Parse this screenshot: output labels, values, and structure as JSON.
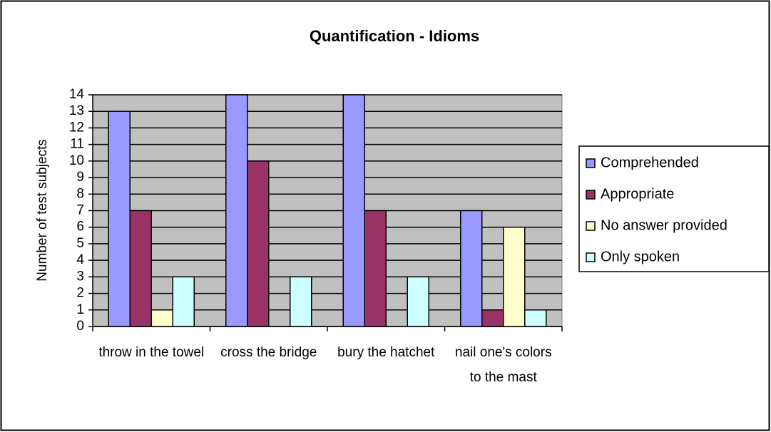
{
  "chart_data": {
    "type": "bar",
    "title": "Quantification - Idioms",
    "y_label": "Number of test subjects",
    "categories": [
      "throw in the towel",
      "cross the bridge",
      "bury the hatchet",
      "nail one's colors to the mast"
    ],
    "series": [
      {
        "name": "Comprehended",
        "color": "#9999ff",
        "values": [
          13,
          14,
          14,
          7
        ]
      },
      {
        "name": "Appropriate",
        "color": "#993366",
        "values": [
          7,
          10,
          7,
          1
        ]
      },
      {
        "name": "No answer provided",
        "color": "#ffffcc",
        "values": [
          1,
          0,
          0,
          6
        ]
      },
      {
        "name": "Only spoken",
        "color": "#ccffff",
        "values": [
          3,
          3,
          3,
          1
        ]
      }
    ],
    "ylim": [
      0,
      14
    ],
    "yticks": [
      0,
      1,
      2,
      3,
      4,
      5,
      6,
      7,
      8,
      9,
      10,
      11,
      12,
      13,
      14
    ],
    "grid": true,
    "legend": "right",
    "plot_background": "#c0c0c0"
  }
}
